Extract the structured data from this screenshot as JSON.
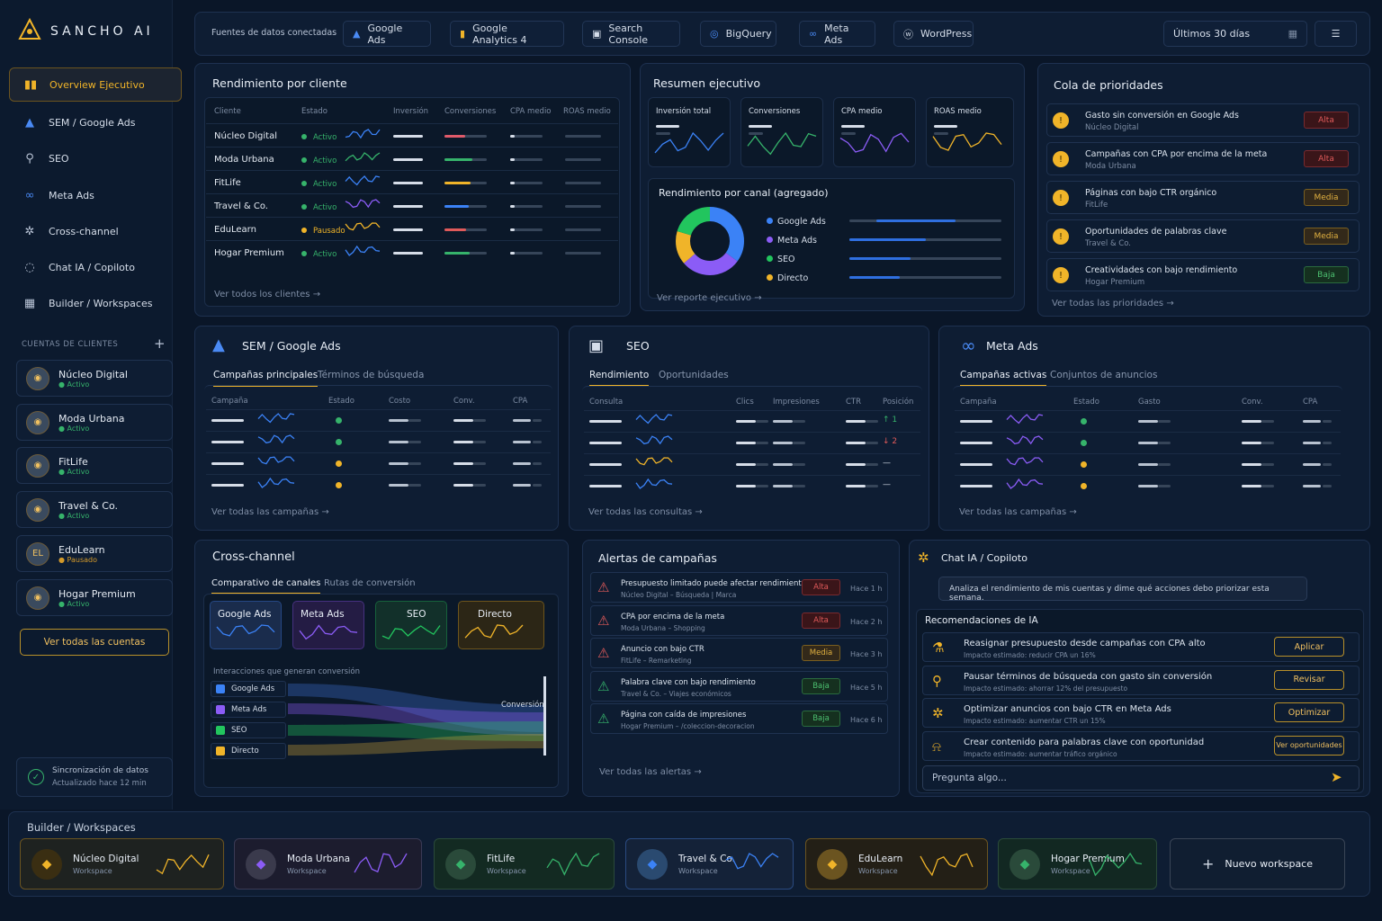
{
  "brand": {
    "name": "SANCHO AI"
  },
  "sidebar": {
    "nav": [
      {
        "label": "Overview Ejecutivo",
        "icon": "bar-chart-icon"
      },
      {
        "label": "SEM / Google Ads",
        "icon": "google-ads-icon"
      },
      {
        "label": "SEO",
        "icon": "search-icon"
      },
      {
        "label": "Meta Ads",
        "icon": "meta-icon"
      },
      {
        "label": "Cross-channel",
        "icon": "cross-channel-icon"
      },
      {
        "label": "Chat IA / Copiloto",
        "icon": "chat-icon"
      },
      {
        "label": "Builder / Workspaces",
        "icon": "grid-icon"
      }
    ],
    "accounts_heading": "CUENTAS DE CLIENTES",
    "accounts": [
      {
        "name": "Núcleo Digital",
        "status": "Activo"
      },
      {
        "name": "Moda Urbana",
        "status": "Activo"
      },
      {
        "name": "FitLife",
        "status": "Activo"
      },
      {
        "name": "Travel & Co.",
        "status": "Activo"
      },
      {
        "name": "EduLearn",
        "status": "Pausado"
      },
      {
        "name": "Hogar Premium",
        "status": "Activo"
      }
    ],
    "all_accounts": "Ver todas las cuentas",
    "sync": {
      "title": "Sincronización de datos",
      "subtitle": "Actualizado hace 12 min"
    }
  },
  "topbar": {
    "label": "Fuentes de datos conectadas",
    "sources": [
      "Google Ads",
      "Google Analytics 4",
      "Search Console",
      "BigQuery",
      "Meta Ads",
      "WordPress"
    ],
    "date_range": "Últimos 30 días"
  },
  "clients_panel": {
    "title": "Rendimiento por cliente",
    "headers": [
      "Cliente",
      "Estado",
      "Inversión",
      "Conversiones",
      "CPA medio",
      "ROAS medio"
    ],
    "rows": [
      {
        "name": "Núcleo Digital",
        "status": "Activo"
      },
      {
        "name": "Moda Urbana",
        "status": "Activo"
      },
      {
        "name": "FitLife",
        "status": "Activo"
      },
      {
        "name": "Travel & Co.",
        "status": "Activo"
      },
      {
        "name": "EduLearn",
        "status": "Pausado"
      },
      {
        "name": "Hogar Premium",
        "status": "Activo"
      }
    ],
    "link": "Ver todos los clientes"
  },
  "exec_summary": {
    "title": "Resumen ejecutivo",
    "kpis": [
      "Inversión total",
      "Conversiones",
      "CPA medio",
      "ROAS medio"
    ],
    "channel_title": "Rendimiento por canal (agregado)",
    "channels": [
      {
        "name": "Google Ads",
        "color": "#3b82f6"
      },
      {
        "name": "Meta Ads",
        "color": "#8b5cf6"
      },
      {
        "name": "SEO",
        "color": "#22c55e"
      },
      {
        "name": "Directo",
        "color": "#f0b429"
      }
    ],
    "link": "Ver reporte ejecutivo"
  },
  "priority": {
    "title": "Cola de prioridades",
    "items": [
      {
        "text": "Gasto sin conversión en Google Ads",
        "client": "Núcleo Digital",
        "level": "Alta"
      },
      {
        "text": "Campañas con CPA por encima de la meta",
        "client": "Moda Urbana",
        "level": "Alta"
      },
      {
        "text": "Páginas con bajo CTR orgánico",
        "client": "FitLife",
        "level": "Media"
      },
      {
        "text": "Oportunidades de palabras clave",
        "client": "Travel & Co.",
        "level": "Media"
      },
      {
        "text": "Creatividades con bajo rendimiento",
        "client": "Hogar Premium",
        "level": "Baja"
      }
    ],
    "link": "Ver todas las prioridades"
  },
  "sem": {
    "title": "SEM / Google Ads",
    "tabs": [
      "Campañas principales",
      "Términos de búsqueda"
    ],
    "headers": [
      "Campaña",
      "Estado",
      "Costo",
      "Conv.",
      "CPA"
    ],
    "link": "Ver todas las campañas"
  },
  "seo": {
    "title": "SEO",
    "tabs": [
      "Rendimiento",
      "Oportunidades"
    ],
    "headers": [
      "Consulta",
      "Clics",
      "Impresiones",
      "CTR",
      "Posición"
    ],
    "positions": [
      "↑ 1",
      "↓ 2",
      "—",
      "—"
    ],
    "link": "Ver todas las consultas"
  },
  "meta": {
    "title": "Meta Ads",
    "tabs": [
      "Campañas activas",
      "Conjuntos de anuncios"
    ],
    "headers": [
      "Campaña",
      "Estado",
      "Gasto",
      "Conv.",
      "CPA"
    ],
    "link": "Ver todas las campañas"
  },
  "cross": {
    "title": "Cross-channel",
    "tabs": [
      "Comparativo de canales",
      "Rutas de conversión"
    ],
    "channels": [
      "Google Ads",
      "Meta Ads",
      "SEO",
      "Directo"
    ],
    "flow_title": "Interacciones que generan conversión",
    "flow_sources": [
      "Google Ads",
      "Meta Ads",
      "SEO",
      "Directo"
    ],
    "flow_target": "Conversión"
  },
  "alerts": {
    "title": "Alertas de campañas",
    "items": [
      {
        "text": "Presupuesto limitado puede afectar rendimiento",
        "sub": "Núcleo Digital – Búsqueda | Marca",
        "level": "Alta",
        "time": "Hace 1 h"
      },
      {
        "text": "CPA por encima de la meta",
        "sub": "Moda Urbana – Shopping",
        "level": "Alta",
        "time": "Hace 2 h"
      },
      {
        "text": "Anuncio con bajo CTR",
        "sub": "FitLife – Remarketing",
        "level": "Media",
        "time": "Hace 3 h"
      },
      {
        "text": "Palabra clave con bajo rendimiento",
        "sub": "Travel & Co. – Viajes económicos",
        "level": "Baja",
        "time": "Hace 5 h"
      },
      {
        "text": "Página con caída de impresiones",
        "sub": "Hogar Premium – /coleccion-decoracion",
        "level": "Baja",
        "time": "Hace 6 h"
      }
    ],
    "link": "Ver todas las alertas"
  },
  "chat": {
    "title": "Chat IA / Copiloto",
    "prompt": "Analiza el rendimiento de mis cuentas y dime qué acciones debo priorizar esta semana.",
    "rec_title": "Recomendaciones de IA",
    "recs": [
      {
        "text": "Reasignar presupuesto desde campañas con CPA alto",
        "sub": "Impacto estimado: reducir CPA un 16%",
        "action": "Aplicar"
      },
      {
        "text": "Pausar términos de búsqueda con gasto sin conversión",
        "sub": "Impacto estimado: ahorrar 12% del presupuesto",
        "action": "Revisar"
      },
      {
        "text": "Optimizar anuncios con bajo CTR en Meta Ads",
        "sub": "Impacto estimado: aumentar CTR un 15%",
        "action": "Optimizar"
      },
      {
        "text": "Crear contenido para palabras clave con oportunidad",
        "sub": "Impacto estimado: aumentar tráfico orgánico",
        "action": "Ver oportunidades"
      }
    ],
    "input_placeholder": "Pregunta algo..."
  },
  "builder": {
    "title": "Builder / Workspaces",
    "workspaces": [
      {
        "name": "Núcleo Digital",
        "sub": "Workspace"
      },
      {
        "name": "Moda Urbana",
        "sub": "Workspace"
      },
      {
        "name": "FitLife",
        "sub": "Workspace"
      },
      {
        "name": "Travel & Co.",
        "sub": "Workspace"
      },
      {
        "name": "EduLearn",
        "sub": "Workspace"
      },
      {
        "name": "Hogar Premium",
        "sub": "Workspace"
      }
    ],
    "new": "Nuevo workspace"
  }
}
